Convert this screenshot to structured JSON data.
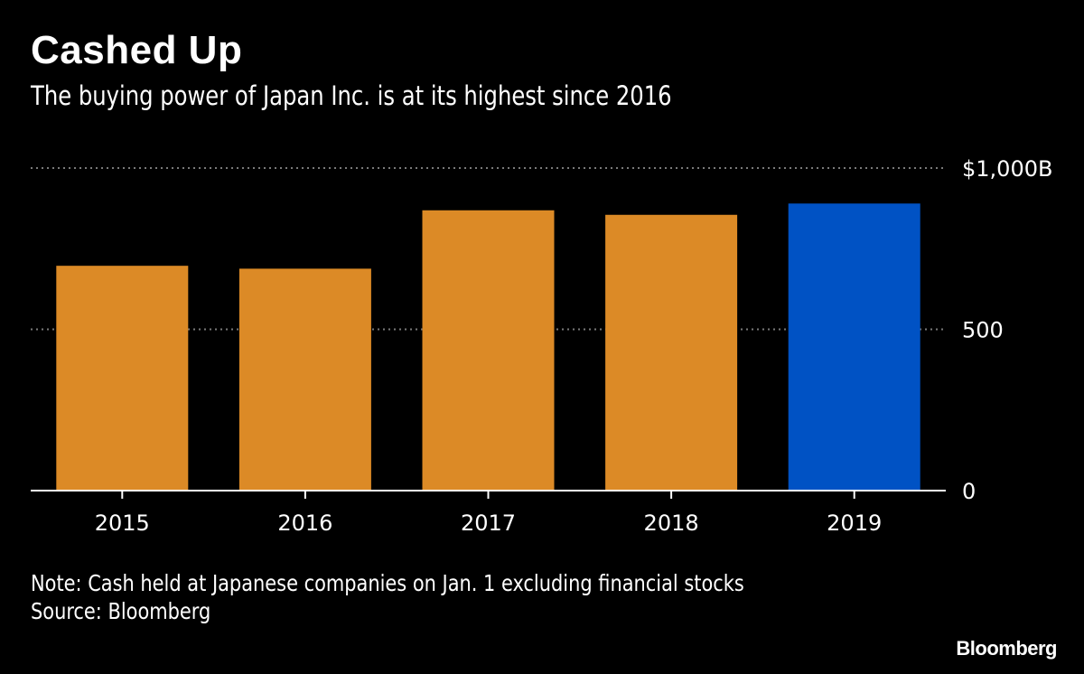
{
  "header": {
    "title": "Cashed Up",
    "subtitle": "The buying power of Japan Inc. is at its highest since 2016"
  },
  "footer": {
    "note": "Note: Cash held at Japanese companies on Jan. 1 excluding financial stocks",
    "source": "Source: Bloomberg",
    "logo": "Bloomberg"
  },
  "colors": {
    "background": "#000000",
    "bar_default": "#DC8A26",
    "bar_highlight": "#0052C4",
    "gridline": "#7a7a7a",
    "axis": "#ffffff",
    "text": "#ffffff"
  },
  "chart_data": {
    "type": "bar",
    "title": "Cashed Up",
    "subtitle": "The buying power of Japan Inc. is at its highest since 2016",
    "categories": [
      "2015",
      "2016",
      "2017",
      "2018",
      "2019"
    ],
    "series": [
      {
        "name": "Cash held at Japanese companies",
        "values": [
          697,
          688,
          869,
          855,
          890
        ],
        "highlight": [
          false,
          false,
          false,
          false,
          true
        ]
      }
    ],
    "xlabel": "",
    "ylabel": "",
    "ylim": [
      0,
      1000
    ],
    "yticks": [
      {
        "value": 0,
        "label": "0"
      },
      {
        "value": 500,
        "label": "500"
      },
      {
        "value": 1000,
        "label": "$1,000B"
      }
    ],
    "grid": true,
    "yaxis_side": "right"
  }
}
